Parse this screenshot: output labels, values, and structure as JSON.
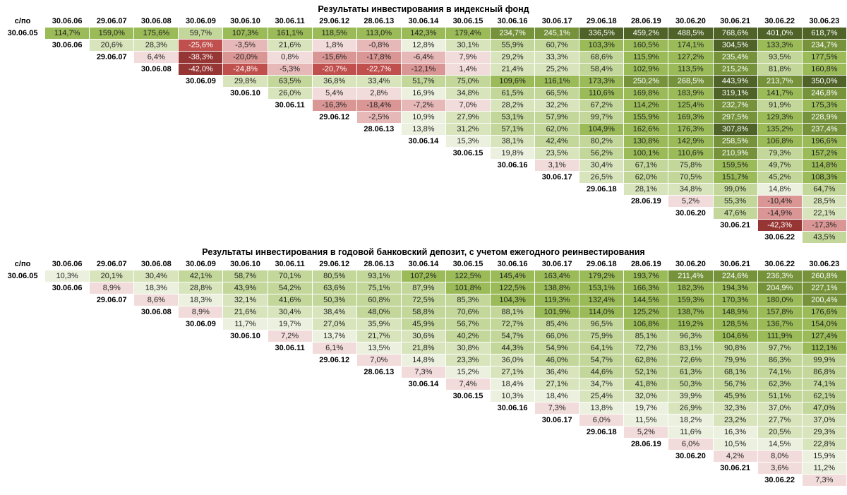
{
  "color_scale": {
    "bands": [
      {
        "from": -99999,
        "to": -30,
        "bg": "#963634",
        "fg": "#FFFFFF"
      },
      {
        "from": -30,
        "to": -20,
        "bg": "#C0504D",
        "fg": "#FFFFFF"
      },
      {
        "from": -20,
        "to": -10,
        "bg": "#D99694",
        "fg": "#1F1F1F"
      },
      {
        "from": -10,
        "to": 0,
        "bg": "#E6B8B7",
        "fg": "#1F1F1F"
      },
      {
        "from": 0,
        "to": 10,
        "bg": "#F2DCDB",
        "fg": "#1F1F1F"
      },
      {
        "from": 10,
        "to": 20,
        "bg": "#EBF1DE",
        "fg": "#1F1F1F"
      },
      {
        "from": 20,
        "to": 40,
        "bg": "#D8E4BC",
        "fg": "#1F1F1F"
      },
      {
        "from": 40,
        "to": 100,
        "bg": "#C4D79B",
        "fg": "#1F1F1F"
      },
      {
        "from": 100,
        "to": 200,
        "bg": "#9BBB59",
        "fg": "#1F1F1F"
      },
      {
        "from": 200,
        "to": 300,
        "bg": "#76933C",
        "fg": "#FFFFFF"
      },
      {
        "from": 300,
        "to": 99999,
        "bg": "#4F6228",
        "fg": "#FFFFFF"
      }
    ]
  },
  "chart_data": [
    {
      "type": "heatmap",
      "title": "Результаты инвестирования в индексный фонд",
      "corner_label": "с/по",
      "columns": [
        "30.06.06",
        "29.06.07",
        "30.06.08",
        "30.06.09",
        "30.06.10",
        "30.06.11",
        "29.06.12",
        "28.06.13",
        "30.06.14",
        "30.06.15",
        "30.06.16",
        "30.06.17",
        "29.06.18",
        "28.06.19",
        "30.06.20",
        "30.06.21",
        "30.06.22",
        "30.06.23"
      ],
      "rows": [
        {
          "label": "30.06.05",
          "values": [
            "114,7%",
            "159,0%",
            "175,6%",
            "59,7%",
            "107,3%",
            "161,1%",
            "118,5%",
            "113,0%",
            "142,3%",
            "179,4%",
            "234,7%",
            "245,1%",
            "336,5%",
            "459,2%",
            "488,5%",
            "768,6%",
            "401,0%",
            "618,7%"
          ]
        },
        {
          "label": "30.06.06",
          "values": [
            "20,6%",
            "28,3%",
            "-25,6%",
            "-3,5%",
            "21,6%",
            "1,8%",
            "-0,8%",
            "12,8%",
            "30,1%",
            "55,9%",
            "60,7%",
            "103,3%",
            "160,5%",
            "174,1%",
            "304,5%",
            "133,3%",
            "234,7%"
          ]
        },
        {
          "label": "29.06.07",
          "values": [
            "6,4%",
            "-38,3%",
            "-20,0%",
            "0,8%",
            "-15,6%",
            "-17,8%",
            "-6,4%",
            "7,9%",
            "29,2%",
            "33,3%",
            "68,6%",
            "115,9%",
            "127,2%",
            "235,4%",
            "93,5%",
            "177,5%"
          ]
        },
        {
          "label": "30.06.08",
          "values": [
            "-42,0%",
            "-24,8%",
            "-5,3%",
            "-20,7%",
            "-22,7%",
            "-12,1%",
            "1,4%",
            "21,4%",
            "25,2%",
            "58,4%",
            "102,9%",
            "113,5%",
            "215,2%",
            "81,8%",
            "160,8%"
          ]
        },
        {
          "label": "30.06.09",
          "values": [
            "29,8%",
            "63,5%",
            "36,8%",
            "33,4%",
            "51,7%",
            "75,0%",
            "109,6%",
            "116,1%",
            "173,3%",
            "250,2%",
            "268,5%",
            "443,9%",
            "213,7%",
            "350,0%"
          ]
        },
        {
          "label": "30.06.10",
          "values": [
            "26,0%",
            "5,4%",
            "2,8%",
            "16,9%",
            "34,8%",
            "61,5%",
            "66,5%",
            "110,6%",
            "169,8%",
            "183,9%",
            "319,1%",
            "141,7%",
            "246,8%"
          ]
        },
        {
          "label": "30.06.11",
          "values": [
            "-16,3%",
            "-18,4%",
            "-7,2%",
            "7,0%",
            "28,2%",
            "32,2%",
            "67,2%",
            "114,2%",
            "125,4%",
            "232,7%",
            "91,9%",
            "175,3%"
          ]
        },
        {
          "label": "29.06.12",
          "values": [
            "-2,5%",
            "10,9%",
            "27,9%",
            "53,1%",
            "57,9%",
            "99,7%",
            "155,9%",
            "169,3%",
            "297,5%",
            "129,3%",
            "228,9%"
          ]
        },
        {
          "label": "28.06.13",
          "values": [
            "13,8%",
            "31,2%",
            "57,1%",
            "62,0%",
            "104,9%",
            "162,6%",
            "176,3%",
            "307,8%",
            "135,2%",
            "237,4%"
          ]
        },
        {
          "label": "30.06.14",
          "values": [
            "15,3%",
            "38,1%",
            "42,4%",
            "80,2%",
            "130,8%",
            "142,9%",
            "258,5%",
            "106,8%",
            "196,6%"
          ]
        },
        {
          "label": "30.06.15",
          "values": [
            "19,8%",
            "23,5%",
            "56,2%",
            "100,1%",
            "110,6%",
            "210,9%",
            "79,3%",
            "157,2%"
          ]
        },
        {
          "label": "30.06.16",
          "values": [
            "3,1%",
            "30,4%",
            "67,1%",
            "75,8%",
            "159,5%",
            "49,7%",
            "114,8%"
          ]
        },
        {
          "label": "30.06.17",
          "values": [
            "26,5%",
            "62,0%",
            "70,5%",
            "151,7%",
            "45,2%",
            "108,3%"
          ]
        },
        {
          "label": "29.06.18",
          "values": [
            "28,1%",
            "34,8%",
            "99,0%",
            "14,8%",
            "64,7%"
          ]
        },
        {
          "label": "28.06.19",
          "values": [
            "5,2%",
            "55,3%",
            "-10,4%",
            "28,5%"
          ]
        },
        {
          "label": "30.06.20",
          "values": [
            "47,6%",
            "-14,9%",
            "22,1%"
          ]
        },
        {
          "label": "30.06.21",
          "values": [
            "-42,3%",
            "-17,3%"
          ]
        },
        {
          "label": "30.06.22",
          "values": [
            "43,5%"
          ]
        }
      ]
    },
    {
      "type": "heatmap",
      "title": "Результаты инвестирования в годовой банковский депозит, с учетом ежегодного реинвестирования",
      "corner_label": "с/по",
      "columns": [
        "30.06.06",
        "29.06.07",
        "30.06.08",
        "30.06.09",
        "30.06.10",
        "30.06.11",
        "29.06.12",
        "28.06.13",
        "30.06.14",
        "30.06.15",
        "30.06.16",
        "30.06.17",
        "29.06.18",
        "28.06.19",
        "30.06.20",
        "30.06.21",
        "30.06.22",
        "30.06.23"
      ],
      "rows": [
        {
          "label": "30.06.05",
          "values": [
            "10,3%",
            "20,1%",
            "30,4%",
            "42,1%",
            "58,7%",
            "70,1%",
            "80,5%",
            "93,1%",
            "107,2%",
            "122,5%",
            "145,4%",
            "163,4%",
            "179,2%",
            "193,7%",
            "211,4%",
            "224,6%",
            "236,3%",
            "260,8%"
          ]
        },
        {
          "label": "30.06.06",
          "values": [
            "8,9%",
            "18,3%",
            "28,8%",
            "43,9%",
            "54,2%",
            "63,6%",
            "75,1%",
            "87,9%",
            "101,8%",
            "122,5%",
            "138,8%",
            "153,1%",
            "166,3%",
            "182,3%",
            "194,3%",
            "204,9%",
            "227,1%"
          ]
        },
        {
          "label": "29.06.07",
          "values": [
            "8,6%",
            "18,3%",
            "32,1%",
            "41,6%",
            "50,3%",
            "60,8%",
            "72,5%",
            "85,3%",
            "104,3%",
            "119,3%",
            "132,4%",
            "144,5%",
            "159,3%",
            "170,3%",
            "180,0%",
            "200,4%"
          ]
        },
        {
          "label": "30.06.08",
          "values": [
            "8,9%",
            "21,6%",
            "30,4%",
            "38,4%",
            "48,0%",
            "58,8%",
            "70,6%",
            "88,1%",
            "101,9%",
            "114,0%",
            "125,2%",
            "138,7%",
            "148,9%",
            "157,8%",
            "176,6%"
          ]
        },
        {
          "label": "30.06.09",
          "values": [
            "11,7%",
            "19,7%",
            "27,0%",
            "35,9%",
            "45,9%",
            "56,7%",
            "72,7%",
            "85,4%",
            "96,5%",
            "106,8%",
            "119,2%",
            "128,5%",
            "136,7%",
            "154,0%"
          ]
        },
        {
          "label": "30.06.10",
          "values": [
            "7,2%",
            "13,7%",
            "21,7%",
            "30,6%",
            "40,2%",
            "54,7%",
            "66,0%",
            "75,9%",
            "85,1%",
            "96,3%",
            "104,6%",
            "111,9%",
            "127,4%"
          ]
        },
        {
          "label": "30.06.11",
          "values": [
            "6,1%",
            "13,5%",
            "21,8%",
            "30,8%",
            "44,3%",
            "54,9%",
            "64,1%",
            "72,7%",
            "83,1%",
            "90,8%",
            "97,7%",
            "112,1%"
          ]
        },
        {
          "label": "29.06.12",
          "values": [
            "7,0%",
            "14,8%",
            "23,3%",
            "36,0%",
            "46,0%",
            "54,7%",
            "62,8%",
            "72,6%",
            "79,9%",
            "86,3%",
            "99,9%"
          ]
        },
        {
          "label": "28.06.13",
          "values": [
            "7,3%",
            "15,2%",
            "27,1%",
            "36,4%",
            "44,6%",
            "52,1%",
            "61,3%",
            "68,1%",
            "74,1%",
            "86,8%"
          ]
        },
        {
          "label": "30.06.14",
          "values": [
            "7,4%",
            "18,4%",
            "27,1%",
            "34,7%",
            "41,8%",
            "50,3%",
            "56,7%",
            "62,3%",
            "74,1%"
          ]
        },
        {
          "label": "30.06.15",
          "values": [
            "10,3%",
            "18,4%",
            "25,4%",
            "32,0%",
            "39,9%",
            "45,9%",
            "51,1%",
            "62,1%"
          ]
        },
        {
          "label": "30.06.16",
          "values": [
            "7,3%",
            "13,8%",
            "19,7%",
            "26,9%",
            "32,3%",
            "37,0%",
            "47,0%"
          ]
        },
        {
          "label": "30.06.17",
          "values": [
            "6,0%",
            "11,5%",
            "18,2%",
            "23,2%",
            "27,7%",
            "37,0%"
          ]
        },
        {
          "label": "29.06.18",
          "values": [
            "5,2%",
            "11,6%",
            "16,3%",
            "20,5%",
            "29,3%"
          ]
        },
        {
          "label": "28.06.19",
          "values": [
            "6,0%",
            "10,5%",
            "14,5%",
            "22,8%"
          ]
        },
        {
          "label": "30.06.20",
          "values": [
            "4,2%",
            "8,0%",
            "15,9%"
          ]
        },
        {
          "label": "30.06.21",
          "values": [
            "3,6%",
            "11,2%"
          ]
        },
        {
          "label": "30.06.22",
          "values": [
            "7,3%"
          ]
        }
      ]
    }
  ]
}
